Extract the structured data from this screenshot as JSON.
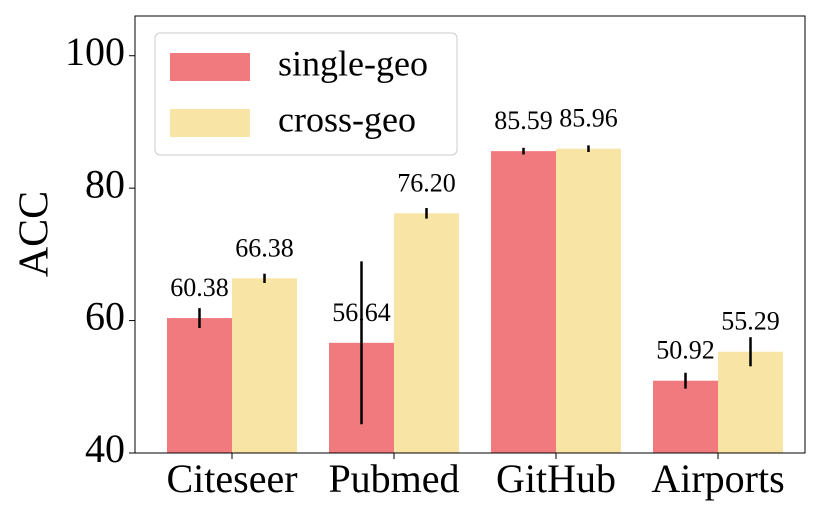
{
  "chart_data": {
    "type": "bar",
    "y_label": "ACC",
    "categories": [
      "Citeseer",
      "Pubmed",
      "GitHub",
      "Airports"
    ],
    "series": [
      {
        "name": "single-geo",
        "color": "#f07a7e",
        "values": [
          60.38,
          56.64,
          85.59,
          50.92
        ],
        "errors": [
          1.5,
          12.3,
          0.5,
          1.2
        ]
      },
      {
        "name": "cross-geo",
        "color": "#f8e4a4",
        "values": [
          66.38,
          76.2,
          85.96,
          55.29
        ],
        "value_labels": [
          "66.38",
          "76.20",
          "85.96",
          "55.29"
        ],
        "errors": [
          0.7,
          0.8,
          0.5,
          2.2
        ]
      }
    ],
    "ylim": [
      40,
      106
    ],
    "yticks": [
      40,
      60,
      80,
      100
    ],
    "legend": "upper left"
  }
}
